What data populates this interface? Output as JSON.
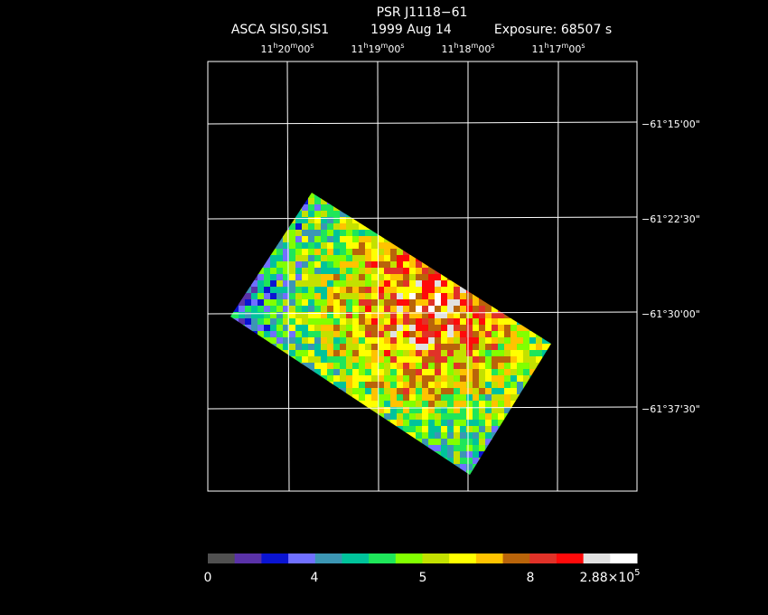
{
  "title": "PSR J1118−61",
  "subtitle": {
    "instrument": "ASCA SIS0,SIS1",
    "date": "1999 Aug 14",
    "exposure": "Exposure: 68507 s"
  },
  "ra_labels": [
    [
      "11",
      "h",
      "20",
      "m",
      "00",
      "s"
    ],
    [
      "11",
      "h",
      "19",
      "m",
      "00",
      "s"
    ],
    [
      "11",
      "h",
      "18",
      "m",
      "00",
      "s"
    ],
    [
      "11",
      "h",
      "17",
      "m",
      "00",
      "s"
    ]
  ],
  "dec_labels": [
    "−61°15'00\"",
    "−61°22'30\"",
    "−61°30'00\"",
    "−61°37'30\""
  ],
  "colorbar": {
    "colors": [
      "#505050",
      "#5a32a8",
      "#0a14d2",
      "#7070ff",
      "#3c96b4",
      "#00c39b",
      "#1ee65a",
      "#82ff00",
      "#c3e100",
      "#ffff00",
      "#ffc300",
      "#b9640a",
      "#e13228",
      "#ff0a0a",
      "#e1e1e1",
      "#ffffff"
    ],
    "labels": [
      [
        "0"
      ],
      [
        "4"
      ],
      [
        "5"
      ],
      [
        "8"
      ],
      [
        "2.88×10",
        "5"
      ]
    ]
  }
}
